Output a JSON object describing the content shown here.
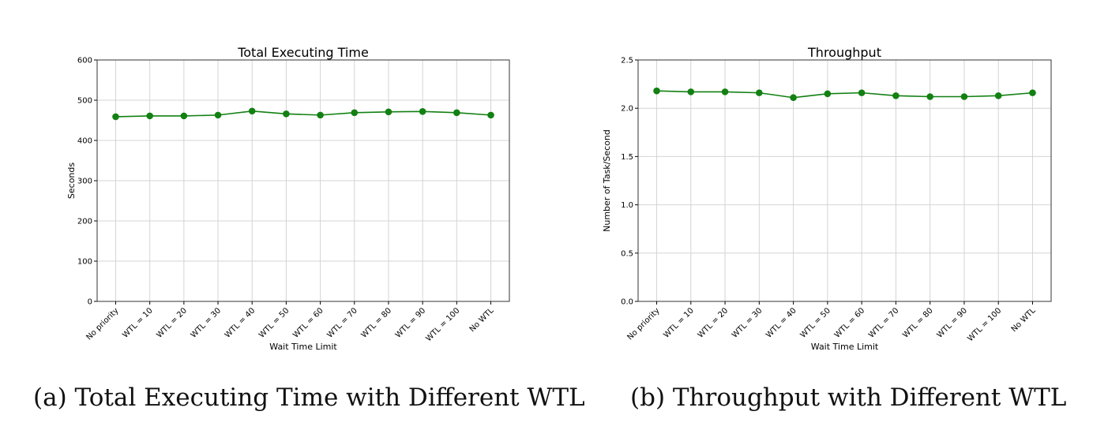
{
  "chart_data": [
    {
      "type": "line",
      "title": "Total Executing Time",
      "xlabel": "Wait Time Limit",
      "ylabel": "Seconds",
      "categories": [
        "No priority",
        "WTL = 10",
        "WTL = 20",
        "WTL = 30",
        "WTL = 40",
        "WTL = 50",
        "WTL = 60",
        "WTL = 70",
        "WTL = 80",
        "WTL = 90",
        "WTL = 100",
        "No WTL"
      ],
      "values": [
        459,
        461,
        461,
        463,
        473,
        466,
        463,
        469,
        471,
        472,
        469,
        463
      ],
      "ylim": [
        0,
        600
      ],
      "yticks": [
        "0",
        "100",
        "200",
        "300",
        "400",
        "500",
        "600"
      ],
      "grid": true,
      "color": "#128012"
    },
    {
      "type": "line",
      "title": "Throughput",
      "xlabel": "Wait Time Limit",
      "ylabel": "Number of Task/Second",
      "categories": [
        "No priority",
        "WTL = 10",
        "WTL = 20",
        "WTL = 30",
        "WTL = 40",
        "WTL = 50",
        "WTL = 60",
        "WTL = 70",
        "WTL = 80",
        "WTL = 90",
        "WTL = 100",
        "No WTL"
      ],
      "values": [
        2.18,
        2.17,
        2.17,
        2.16,
        2.11,
        2.15,
        2.16,
        2.13,
        2.12,
        2.12,
        2.13,
        2.16
      ],
      "ylim": [
        0,
        2.5
      ],
      "yticks": [
        "0.0",
        "0.5",
        "1.0",
        "1.5",
        "2.0",
        "2.5"
      ],
      "grid": true,
      "color": "#128012"
    }
  ],
  "captions": {
    "a": "(a) Total Executing Time with Different WTL",
    "b": "(b) Throughput with Different WTL"
  }
}
